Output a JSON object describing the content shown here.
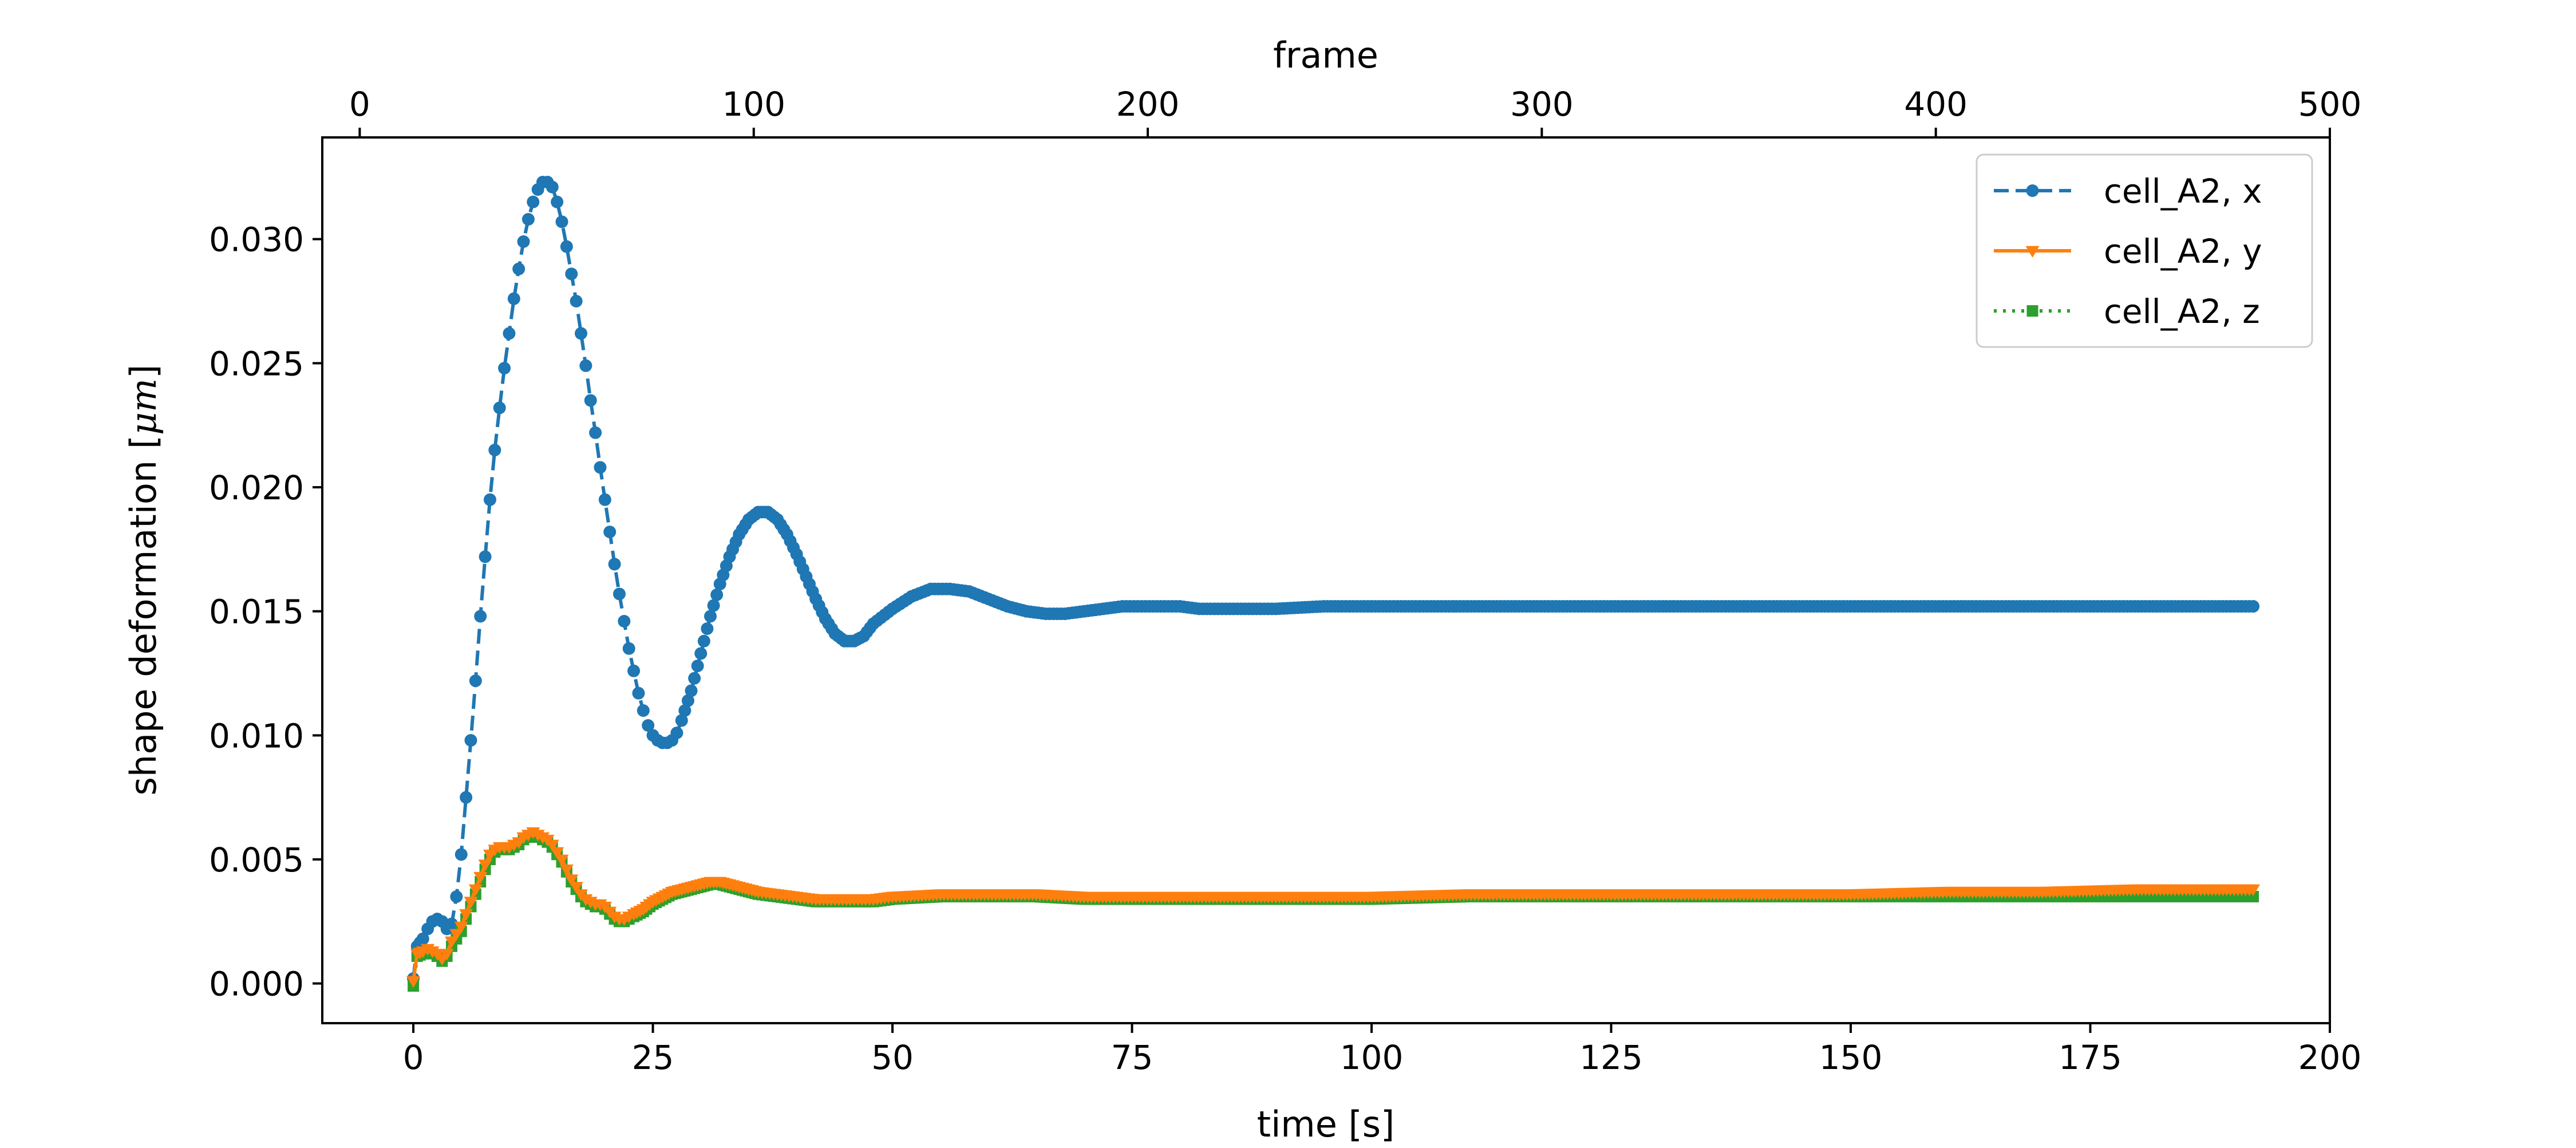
{
  "chart_data": {
    "type": "line",
    "title": "",
    "xlabel": "time [s]",
    "ylabel": "shape deformation [$\\mu m$]",
    "ylabel_parts": {
      "prefix": "shape deformation [",
      "unit": "μm",
      "suffix": "]"
    },
    "secondary_xlabel": "frame",
    "xlim": [
      -9.5,
      200
    ],
    "ylim": [
      -0.0016,
      0.0341
    ],
    "secondary_xlim": [
      -9.5,
      500
    ],
    "x_ticks": [
      0,
      25,
      50,
      75,
      100,
      125,
      150,
      175,
      200
    ],
    "x_tick_labels": [
      "0",
      "25",
      "50",
      "75",
      "100",
      "125",
      "150",
      "175",
      "200"
    ],
    "y_ticks": [
      0.0,
      0.005,
      0.01,
      0.015,
      0.02,
      0.025,
      0.03
    ],
    "y_tick_labels": [
      "0.000",
      "0.005",
      "0.010",
      "0.015",
      "0.020",
      "0.025",
      "0.030"
    ],
    "secondary_x_ticks": [
      0,
      100,
      200,
      300,
      400,
      500
    ],
    "secondary_x_tick_labels": [
      "0",
      "100",
      "200",
      "300",
      "400",
      "500"
    ],
    "grid": false,
    "legend_position": "upper right",
    "series": [
      {
        "name": "cell_A2, x",
        "color": "#1f77b4",
        "line_style": "dashed",
        "marker": "circle",
        "points": [
          [
            0,
            0.0002
          ],
          [
            0.4,
            0.0015
          ],
          [
            1,
            0.0018
          ],
          [
            1.5,
            0.0022
          ],
          [
            2,
            0.0025
          ],
          [
            2.5,
            0.0026
          ],
          [
            3,
            0.0025
          ],
          [
            3.5,
            0.0022
          ],
          [
            4,
            0.0024
          ],
          [
            4.5,
            0.0035
          ],
          [
            5,
            0.0052
          ],
          [
            5.5,
            0.0075
          ],
          [
            6,
            0.0098
          ],
          [
            6.5,
            0.0122
          ],
          [
            7,
            0.0148
          ],
          [
            7.5,
            0.0172
          ],
          [
            8,
            0.0195
          ],
          [
            8.5,
            0.0215
          ],
          [
            9,
            0.0232
          ],
          [
            9.5,
            0.0248
          ],
          [
            10,
            0.0262
          ],
          [
            10.5,
            0.0276
          ],
          [
            11,
            0.0288
          ],
          [
            11.5,
            0.0299
          ],
          [
            12,
            0.0308
          ],
          [
            12.5,
            0.0315
          ],
          [
            13,
            0.032
          ],
          [
            13.5,
            0.0323
          ],
          [
            14,
            0.0323
          ],
          [
            14.5,
            0.0321
          ],
          [
            15,
            0.0315
          ],
          [
            15.5,
            0.0307
          ],
          [
            16,
            0.0297
          ],
          [
            16.5,
            0.0286
          ],
          [
            17,
            0.0275
          ],
          [
            17.5,
            0.0262
          ],
          [
            18,
            0.0249
          ],
          [
            18.5,
            0.0235
          ],
          [
            19,
            0.0222
          ],
          [
            19.5,
            0.0208
          ],
          [
            20,
            0.0195
          ],
          [
            20.5,
            0.0182
          ],
          [
            21,
            0.0169
          ],
          [
            21.5,
            0.0157
          ],
          [
            22,
            0.0146
          ],
          [
            22.5,
            0.0135
          ],
          [
            23,
            0.0126
          ],
          [
            23.5,
            0.0117
          ],
          [
            24,
            0.011
          ],
          [
            24.5,
            0.0104
          ],
          [
            25,
            0.01
          ],
          [
            25.5,
            0.0098
          ],
          [
            26,
            0.0097
          ],
          [
            26.5,
            0.0097
          ],
          [
            27,
            0.0098
          ],
          [
            27.5,
            0.0101
          ],
          [
            28,
            0.0106
          ],
          [
            29,
            0.0118
          ],
          [
            30,
            0.0133
          ],
          [
            31,
            0.0148
          ],
          [
            32,
            0.0161
          ],
          [
            33,
            0.0172
          ],
          [
            34,
            0.0181
          ],
          [
            35,
            0.0187
          ],
          [
            36,
            0.019
          ],
          [
            37,
            0.019
          ],
          [
            38,
            0.0187
          ],
          [
            39,
            0.0181
          ],
          [
            40,
            0.0173
          ],
          [
            41,
            0.0164
          ],
          [
            42,
            0.0155
          ],
          [
            43,
            0.0147
          ],
          [
            44,
            0.0141
          ],
          [
            45,
            0.0138
          ],
          [
            46,
            0.0138
          ],
          [
            47,
            0.014
          ],
          [
            48,
            0.0145
          ],
          [
            50,
            0.0151
          ],
          [
            52,
            0.0156
          ],
          [
            54,
            0.0159
          ],
          [
            56,
            0.0159
          ],
          [
            58,
            0.0158
          ],
          [
            60,
            0.0155
          ],
          [
            62,
            0.0152
          ],
          [
            64,
            0.015
          ],
          [
            66,
            0.0149
          ],
          [
            68,
            0.0149
          ],
          [
            70,
            0.015
          ],
          [
            72,
            0.0151
          ],
          [
            74,
            0.0152
          ],
          [
            76,
            0.0152
          ],
          [
            78,
            0.0152
          ],
          [
            80,
            0.0152
          ],
          [
            82,
            0.0151
          ],
          [
            84,
            0.0151
          ],
          [
            86,
            0.0151
          ],
          [
            88,
            0.0151
          ],
          [
            90,
            0.0151
          ],
          [
            95,
            0.0152
          ],
          [
            100,
            0.0152
          ],
          [
            110,
            0.0152
          ],
          [
            120,
            0.0152
          ],
          [
            130,
            0.0152
          ],
          [
            140,
            0.0152
          ],
          [
            150,
            0.0152
          ],
          [
            160,
            0.0152
          ],
          [
            170,
            0.0152
          ],
          [
            180,
            0.0152
          ],
          [
            190,
            0.0152
          ],
          [
            192,
            0.0152
          ]
        ]
      },
      {
        "name": "cell_A2, y",
        "color": "#ff7f0e",
        "line_style": "solid",
        "marker": "triangle-down",
        "points": [
          [
            0,
            0.0001
          ],
          [
            0.4,
            0.0012
          ],
          [
            1,
            0.0013
          ],
          [
            1.5,
            0.0014
          ],
          [
            2,
            0.0013
          ],
          [
            2.5,
            0.0012
          ],
          [
            3,
            0.001
          ],
          [
            3.5,
            0.0012
          ],
          [
            4,
            0.0017
          ],
          [
            4.5,
            0.002
          ],
          [
            5,
            0.0023
          ],
          [
            5.5,
            0.0028
          ],
          [
            6,
            0.0033
          ],
          [
            6.5,
            0.0038
          ],
          [
            7,
            0.0043
          ],
          [
            7.5,
            0.0048
          ],
          [
            8,
            0.0052
          ],
          [
            8.5,
            0.0054
          ],
          [
            9,
            0.0055
          ],
          [
            9.5,
            0.0055
          ],
          [
            10,
            0.0055
          ],
          [
            10.5,
            0.0056
          ],
          [
            11,
            0.0057
          ],
          [
            11.5,
            0.0059
          ],
          [
            12,
            0.006
          ],
          [
            12.5,
            0.0061
          ],
          [
            13,
            0.006
          ],
          [
            13.5,
            0.0059
          ],
          [
            14,
            0.0058
          ],
          [
            14.5,
            0.0056
          ],
          [
            15,
            0.0053
          ],
          [
            15.5,
            0.005
          ],
          [
            16,
            0.0046
          ],
          [
            16.5,
            0.0042
          ],
          [
            17,
            0.0039
          ],
          [
            17.5,
            0.0036
          ],
          [
            18,
            0.0034
          ],
          [
            18.5,
            0.0033
          ],
          [
            19,
            0.0032
          ],
          [
            19.5,
            0.0032
          ],
          [
            20,
            0.0031
          ],
          [
            20.5,
            0.0029
          ],
          [
            21,
            0.0027
          ],
          [
            21.5,
            0.0026
          ],
          [
            22,
            0.0026
          ],
          [
            22.5,
            0.0027
          ],
          [
            23,
            0.0028
          ],
          [
            24,
            0.003
          ],
          [
            25,
            0.0033
          ],
          [
            26,
            0.0035
          ],
          [
            27,
            0.0037
          ],
          [
            28,
            0.0038
          ],
          [
            29,
            0.0039
          ],
          [
            30,
            0.004
          ],
          [
            31,
            0.0041
          ],
          [
            32,
            0.0041
          ],
          [
            33,
            0.004
          ],
          [
            34,
            0.0039
          ],
          [
            35,
            0.0038
          ],
          [
            36,
            0.0037
          ],
          [
            38,
            0.0036
          ],
          [
            40,
            0.0035
          ],
          [
            42,
            0.0034
          ],
          [
            44,
            0.0034
          ],
          [
            46,
            0.0034
          ],
          [
            48,
            0.0034
          ],
          [
            50,
            0.0035
          ],
          [
            55,
            0.0036
          ],
          [
            60,
            0.0036
          ],
          [
            65,
            0.0036
          ],
          [
            70,
            0.0035
          ],
          [
            75,
            0.0035
          ],
          [
            80,
            0.0035
          ],
          [
            85,
            0.0035
          ],
          [
            90,
            0.0035
          ],
          [
            100,
            0.0035
          ],
          [
            110,
            0.0036
          ],
          [
            120,
            0.0036
          ],
          [
            130,
            0.0036
          ],
          [
            140,
            0.0036
          ],
          [
            150,
            0.0036
          ],
          [
            160,
            0.0037
          ],
          [
            170,
            0.0037
          ],
          [
            180,
            0.0038
          ],
          [
            190,
            0.0038
          ],
          [
            192,
            0.0038
          ]
        ]
      },
      {
        "name": "cell_A2, z",
        "color": "#2ca02c",
        "line_style": "dotted",
        "marker": "square",
        "points": [
          [
            0,
            -0.0001
          ],
          [
            0.4,
            0.0011
          ],
          [
            1,
            0.0012
          ],
          [
            1.5,
            0.0013
          ],
          [
            2,
            0.0012
          ],
          [
            2.5,
            0.0011
          ],
          [
            3,
            0.0009
          ],
          [
            3.5,
            0.0011
          ],
          [
            4,
            0.0015
          ],
          [
            4.5,
            0.0018
          ],
          [
            5,
            0.0021
          ],
          [
            5.5,
            0.0026
          ],
          [
            6,
            0.0031
          ],
          [
            6.5,
            0.0036
          ],
          [
            7,
            0.0041
          ],
          [
            7.5,
            0.0046
          ],
          [
            8,
            0.005
          ],
          [
            8.5,
            0.0053
          ],
          [
            9,
            0.0054
          ],
          [
            9.5,
            0.0054
          ],
          [
            10,
            0.0054
          ],
          [
            10.5,
            0.0055
          ],
          [
            11,
            0.0056
          ],
          [
            11.5,
            0.0058
          ],
          [
            12,
            0.0059
          ],
          [
            12.5,
            0.006
          ],
          [
            13,
            0.0059
          ],
          [
            13.5,
            0.0058
          ],
          [
            14,
            0.0057
          ],
          [
            14.5,
            0.0055
          ],
          [
            15,
            0.0052
          ],
          [
            15.5,
            0.0049
          ],
          [
            16,
            0.0045
          ],
          [
            16.5,
            0.0041
          ],
          [
            17,
            0.0038
          ],
          [
            17.5,
            0.0035
          ],
          [
            18,
            0.0033
          ],
          [
            18.5,
            0.0032
          ],
          [
            19,
            0.0031
          ],
          [
            19.5,
            0.0031
          ],
          [
            20,
            0.003
          ],
          [
            20.5,
            0.0028
          ],
          [
            21,
            0.0026
          ],
          [
            21.5,
            0.0025
          ],
          [
            22,
            0.0025
          ],
          [
            22.5,
            0.0026
          ],
          [
            23,
            0.0027
          ],
          [
            24,
            0.0029
          ],
          [
            25,
            0.0032
          ],
          [
            26,
            0.0034
          ],
          [
            27,
            0.0036
          ],
          [
            28,
            0.0037
          ],
          [
            29,
            0.0038
          ],
          [
            30,
            0.0039
          ],
          [
            31,
            0.004
          ],
          [
            32,
            0.004
          ],
          [
            33,
            0.0039
          ],
          [
            34,
            0.0038
          ],
          [
            35,
            0.0037
          ],
          [
            36,
            0.0036
          ],
          [
            38,
            0.0035
          ],
          [
            40,
            0.0034
          ],
          [
            42,
            0.0033
          ],
          [
            44,
            0.0033
          ],
          [
            46,
            0.0033
          ],
          [
            48,
            0.0033
          ],
          [
            50,
            0.0034
          ],
          [
            55,
            0.0035
          ],
          [
            60,
            0.0035
          ],
          [
            65,
            0.0035
          ],
          [
            70,
            0.0034
          ],
          [
            75,
            0.0034
          ],
          [
            80,
            0.0034
          ],
          [
            85,
            0.0034
          ],
          [
            90,
            0.0034
          ],
          [
            100,
            0.0034
          ],
          [
            110,
            0.0035
          ],
          [
            120,
            0.0035
          ],
          [
            130,
            0.0035
          ],
          [
            140,
            0.0035
          ],
          [
            150,
            0.0035
          ],
          [
            160,
            0.0035
          ],
          [
            170,
            0.0035
          ],
          [
            180,
            0.0035
          ],
          [
            190,
            0.0035
          ],
          [
            192,
            0.0035
          ]
        ]
      }
    ]
  }
}
